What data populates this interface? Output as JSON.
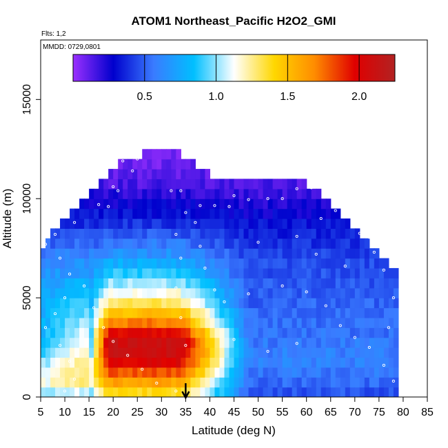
{
  "chart_data": {
    "type": "heatmap",
    "title": "ATOM1 Northeast_Pacific H2O2_GMI",
    "flights_note": "Flts: 1,2",
    "date_note": "MMDD: 0729,0801",
    "xlabel": "Latitude (deg N)",
    "ylabel": "Altitude (m)",
    "xlim": [
      5,
      85
    ],
    "ylim": [
      0,
      18000
    ],
    "x_ticks": [
      5,
      10,
      15,
      20,
      25,
      30,
      35,
      40,
      45,
      50,
      55,
      60,
      65,
      70,
      75,
      80,
      85
    ],
    "y_ticks": [
      0,
      5000,
      10000,
      15000
    ],
    "colorbar": {
      "range": [
        0,
        2.25
      ],
      "ticks": [
        0.5,
        1.0,
        1.5,
        2.0
      ],
      "tick_labels": [
        "0.5",
        "1.0",
        "1.5",
        "2.0"
      ],
      "colors": [
        "#9b30ff",
        "#0000cd",
        "#3a7bff",
        "#00bfff",
        "#ffffff",
        "#ffd700",
        "#ff8c00",
        "#e00000",
        "#b22222"
      ]
    },
    "arrow_latitude": 35,
    "grid": {
      "lat_start": 5,
      "lat_end": 79,
      "lat_step": 1,
      "alt_step": 500,
      "columns": [
        {
          "lat": 5,
          "top": 7500,
          "profile": "south"
        },
        {
          "lat": 20,
          "top": 11500,
          "profile": "mid"
        },
        {
          "lat": 30,
          "top": 12500,
          "profile": "mid"
        },
        {
          "lat": 40,
          "top": 11000,
          "profile": "mid"
        },
        {
          "lat": 60,
          "top": 10500,
          "profile": "north"
        },
        {
          "lat": 79,
          "top": 6000,
          "profile": "north"
        }
      ]
    },
    "profiles": {
      "south": {
        "alts": [
          0,
          1000,
          2000,
          3000,
          5000,
          7000,
          9000,
          11000,
          13000
        ],
        "values": [
          0.9,
          1.2,
          0.9,
          0.8,
          0.75,
          0.6,
          0.35,
          0.15,
          0.05
        ]
      },
      "mid": {
        "alts": [
          0,
          1000,
          2000,
          3000,
          4000,
          5000,
          7000,
          9000,
          11000,
          13000
        ],
        "values": [
          1.3,
          1.7,
          2.1,
          2.1,
          1.6,
          1.2,
          0.7,
          0.35,
          0.12,
          0.05
        ]
      },
      "north": {
        "alts": [
          0,
          1000,
          2000,
          3000,
          5000,
          7000,
          9000,
          11000,
          13000
        ],
        "values": [
          0.45,
          0.55,
          0.6,
          0.55,
          0.5,
          0.45,
          0.3,
          0.12,
          0.05
        ]
      }
    },
    "flight_track": [
      {
        "lat": 26,
        "alt": 12600
      },
      {
        "lat": 28,
        "alt": 12600
      },
      {
        "lat": 30,
        "alt": 12600
      },
      {
        "lat": 31,
        "alt": 12600
      },
      {
        "lat": 32,
        "alt": 10400
      },
      {
        "lat": 34,
        "alt": 10400
      },
      {
        "lat": 38,
        "alt": 9650
      },
      {
        "lat": 41,
        "alt": 9650
      },
      {
        "lat": 44,
        "alt": 9600
      },
      {
        "lat": 45,
        "alt": 10150
      },
      {
        "lat": 48,
        "alt": 9950
      },
      {
        "lat": 52,
        "alt": 10000
      },
      {
        "lat": 55,
        "alt": 10000
      },
      {
        "lat": 58,
        "alt": 10500
      },
      {
        "lat": 61,
        "alt": 10550
      },
      {
        "lat": 64,
        "alt": 10500
      },
      {
        "lat": 69,
        "alt": 10400
      },
      {
        "lat": 73,
        "alt": 9900
      },
      {
        "lat": 76,
        "alt": 9500
      },
      {
        "lat": 71,
        "alt": 8250
      },
      {
        "lat": 73,
        "alt": 8050
      },
      {
        "lat": 8,
        "alt": 11300
      },
      {
        "lat": 10,
        "alt": 11300
      },
      {
        "lat": 11,
        "alt": 10700
      },
      {
        "lat": 12,
        "alt": 11300
      },
      {
        "lat": 13,
        "alt": 10400
      },
      {
        "lat": 15,
        "alt": 10800
      },
      {
        "lat": 20,
        "alt": 10600
      },
      {
        "lat": 21,
        "alt": 10400
      },
      {
        "lat": 17,
        "alt": 9700
      },
      {
        "lat": 19,
        "alt": 9600
      },
      {
        "lat": 12,
        "alt": 8800
      },
      {
        "lat": 8,
        "alt": 8200
      },
      {
        "lat": 6,
        "alt": 7700
      },
      {
        "lat": 9,
        "alt": 7000
      },
      {
        "lat": 11,
        "alt": 6200
      },
      {
        "lat": 14,
        "alt": 5600
      },
      {
        "lat": 10,
        "alt": 5000
      },
      {
        "lat": 8,
        "alt": 4200
      },
      {
        "lat": 6,
        "alt": 3500
      },
      {
        "lat": 9,
        "alt": 2600
      },
      {
        "lat": 11,
        "alt": 1800
      },
      {
        "lat": 12,
        "alt": 900
      },
      {
        "lat": 10,
        "alt": 300
      },
      {
        "lat": 16,
        "alt": 4500
      },
      {
        "lat": 18,
        "alt": 3500
      },
      {
        "lat": 20,
        "alt": 2800
      },
      {
        "lat": 23,
        "alt": 2100
      },
      {
        "lat": 26,
        "alt": 1400
      },
      {
        "lat": 29,
        "alt": 700
      },
      {
        "lat": 33,
        "alt": 300
      },
      {
        "lat": 35,
        "alt": 2600
      },
      {
        "lat": 34,
        "alt": 4000
      },
      {
        "lat": 33,
        "alt": 5500
      },
      {
        "lat": 34,
        "alt": 7000
      },
      {
        "lat": 33,
        "alt": 8200
      },
      {
        "lat": 35,
        "alt": 9300
      },
      {
        "lat": 37,
        "alt": 8800
      },
      {
        "lat": 38,
        "alt": 7600
      },
      {
        "lat": 39,
        "alt": 6500
      },
      {
        "lat": 41,
        "alt": 5400
      },
      {
        "lat": 43,
        "alt": 4800
      },
      {
        "lat": 48,
        "alt": 5200
      },
      {
        "lat": 55,
        "alt": 5600
      },
      {
        "lat": 60,
        "alt": 5300
      },
      {
        "lat": 64,
        "alt": 4600
      },
      {
        "lat": 67,
        "alt": 3600
      },
      {
        "lat": 70,
        "alt": 3000
      },
      {
        "lat": 73,
        "alt": 2500
      },
      {
        "lat": 76,
        "alt": 1600
      },
      {
        "lat": 78,
        "alt": 800
      },
      {
        "lat": 77,
        "alt": 3500
      },
      {
        "lat": 78,
        "alt": 5000
      },
      {
        "lat": 76,
        "alt": 6400
      },
      {
        "lat": 74,
        "alt": 7300
      },
      {
        "lat": 68,
        "alt": 6600
      },
      {
        "lat": 62,
        "alt": 7200
      },
      {
        "lat": 58,
        "alt": 8100
      },
      {
        "lat": 63,
        "alt": 9000
      },
      {
        "lat": 66,
        "alt": 9400
      },
      {
        "lat": 50,
        "alt": 7800
      },
      {
        "lat": 45,
        "alt": 2900
      },
      {
        "lat": 52,
        "alt": 2300
      },
      {
        "lat": 58,
        "alt": 2700
      },
      {
        "lat": 24,
        "alt": 11400
      },
      {
        "lat": 22,
        "alt": 11900
      },
      {
        "lat": 25,
        "alt": 12000
      },
      {
        "lat": 66,
        "alt": 11200
      },
      {
        "lat": 65,
        "alt": 10900
      }
    ]
  }
}
